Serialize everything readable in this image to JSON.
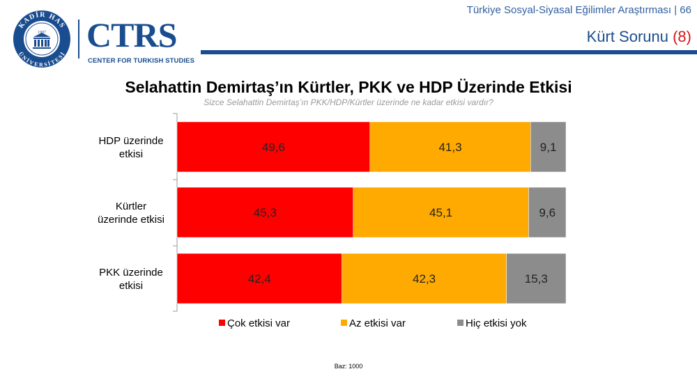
{
  "header": {
    "report_title": "Türkiye Sosyal-Siyasal Eğilimler Araştırması | 66",
    "section_title": "Kürt Sorunu",
    "section_number": "(8)"
  },
  "logos": {
    "seal_text_top": "KADİR HAS",
    "seal_text_bottom": "ÜNİVERSİTESİ",
    "seal_year": "1997",
    "center_word": "CTRS",
    "center_subtitle": "CENTER FOR TURKISH STUDIES"
  },
  "colors": {
    "brand_blue": "#1a4d8f",
    "accent_red": "#d3161b",
    "series_red": "#ff0000",
    "series_orange": "#ffaa00",
    "series_gray": "#8c8c8c"
  },
  "chart_data": {
    "type": "bar",
    "orientation": "horizontal",
    "stacked": true,
    "title": "Selahattin Demirtaş’ın Kürtler, PKK ve HDP Üzerinde Etkisi",
    "subtitle": "Sizce Selahattin Demirtaş’ın PKK/HDP/Kürtler üzerinde ne kadar etkisi vardır?",
    "categories": [
      [
        "HDP üzerinde",
        "etkisi"
      ],
      [
        "Kürtler",
        "üzerinde etkisi"
      ],
      [
        "PKK üzerinde",
        "etkisi"
      ]
    ],
    "series": [
      {
        "name": "Çok etkisi var",
        "values": [
          49.6,
          45.3,
          42.4
        ],
        "labels": [
          "49,6",
          "45,3",
          "42,4"
        ],
        "color": "#ff0000"
      },
      {
        "name": "Az etkisi var",
        "values": [
          41.3,
          45.1,
          42.3
        ],
        "labels": [
          "41,3",
          "45,1",
          "42,3"
        ],
        "color": "#ffaa00"
      },
      {
        "name": "Hiç etkisi yok",
        "values": [
          9.1,
          9.6,
          15.3
        ],
        "labels": [
          "9,1",
          "9,6",
          "15,3"
        ],
        "color": "#8c8c8c"
      }
    ],
    "xlim": [
      0,
      100
    ],
    "legend_position": "bottom",
    "grid": false
  },
  "footnote": "Baz: 1000"
}
